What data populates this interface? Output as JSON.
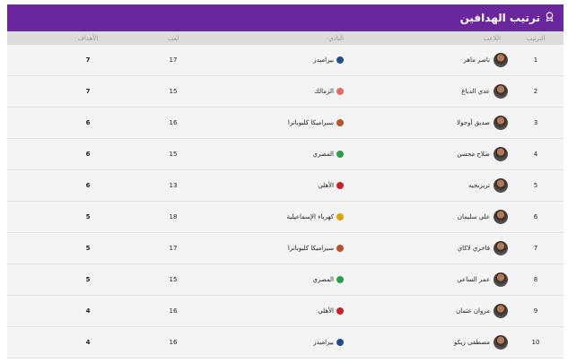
{
  "title": "ترتيب الهدافين",
  "title_icon": "medal-icon",
  "headers": {
    "rank": "الترتيب",
    "player": "اللاعب",
    "club": "النادي",
    "played": "لعب",
    "goals": "الأهداف"
  },
  "rows": [
    {
      "rank": "1",
      "player": "ناصر ماهر",
      "club": "بيراميدز",
      "club_color": "#1f4e8c",
      "played": "17",
      "goals": "7"
    },
    {
      "rank": "2",
      "player": "عدي الدباغ",
      "club": "الزمالك",
      "club_color": "#e06a6a",
      "played": "15",
      "goals": "7"
    },
    {
      "rank": "3",
      "player": "صديق أوجولا",
      "club": "سيراميكا كليوباترا",
      "club_color": "#b5532a",
      "played": "16",
      "goals": "6"
    },
    {
      "rank": "4",
      "player": "صلاح محسن",
      "club": "المصري",
      "club_color": "#2e9e4a",
      "played": "15",
      "goals": "6"
    },
    {
      "rank": "5",
      "player": "تريزيجيه",
      "club": "الأهلي",
      "club_color": "#c8202a",
      "played": "13",
      "goals": "6"
    },
    {
      "rank": "6",
      "player": "علي سليمان",
      "club": "كهرباء الإسماعيلية",
      "club_color": "#d9a400",
      "played": "18",
      "goals": "5"
    },
    {
      "rank": "7",
      "player": "فاخري لاكاي",
      "club": "سيراميكا كليوباترا",
      "club_color": "#b5532a",
      "played": "17",
      "goals": "5"
    },
    {
      "rank": "8",
      "player": "عمر الساعي",
      "club": "المصري",
      "club_color": "#2e9e4a",
      "played": "15",
      "goals": "5"
    },
    {
      "rank": "9",
      "player": "مروان عثمان",
      "club": "الأهلي",
      "club_color": "#c8202a",
      "played": "16",
      "goals": "4"
    },
    {
      "rank": "10",
      "player": "مصطفى زيكو",
      "club": "بيراميدز",
      "club_color": "#1f4e8c",
      "played": "16",
      "goals": "4"
    }
  ]
}
